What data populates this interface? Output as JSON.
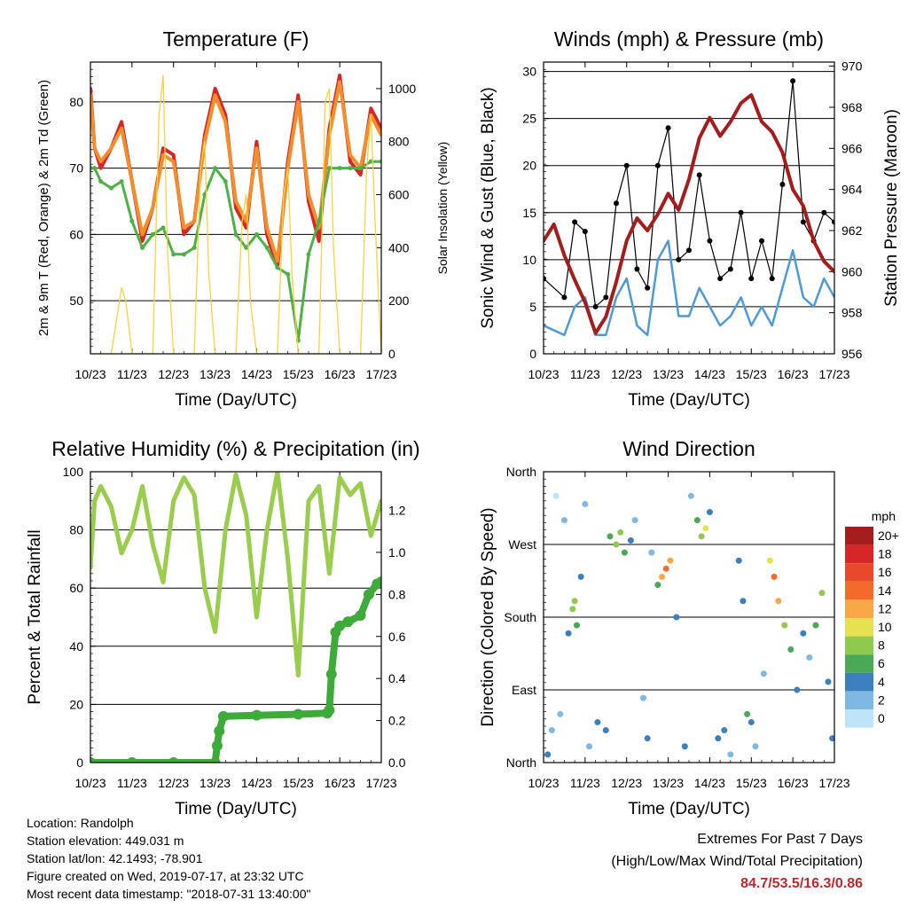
{
  "chart_data": [
    {
      "type": "line",
      "title": "Temperature (F)",
      "xlabel": "Time (Day/UTC)",
      "ylabel": "2m & 9m T (Red, Orange) & 2m Td (Green)",
      "ylabel_right": "Solar Insolation (Yellow)",
      "x_ticks": [
        "10/23",
        "11/23",
        "12/23",
        "13/23",
        "14/23",
        "15/23",
        "16/23",
        "17/23"
      ],
      "y_ticks": [
        "50",
        "60",
        "70",
        "80"
      ],
      "y_right_ticks": [
        "0",
        "200",
        "400",
        "600",
        "800",
        "1000"
      ],
      "ylim": [
        42,
        86
      ],
      "ylim_right": [
        0,
        1100
      ],
      "xlim": [
        0,
        7
      ],
      "grid": "horizontal",
      "series": [
        {
          "key": "t2m",
          "color": "#d62728",
          "x": [
            0,
            0.1,
            0.25,
            0.5,
            0.75,
            1.0,
            1.25,
            1.5,
            1.75,
            2.0,
            2.25,
            2.5,
            2.75,
            3.0,
            3.25,
            3.5,
            3.75,
            4.0,
            4.25,
            4.5,
            4.75,
            5.0,
            5.25,
            5.5,
            5.75,
            6.0,
            6.25,
            6.5,
            6.75,
            7.0
          ],
          "values": [
            82,
            73,
            70,
            73,
            77,
            68,
            59,
            64,
            73,
            72,
            60,
            62,
            75,
            82,
            78,
            64,
            61,
            74,
            60,
            55,
            71,
            81,
            65,
            59,
            76,
            84,
            71,
            69,
            79,
            76
          ]
        },
        {
          "key": "t9m",
          "color": "#f28e2b",
          "x": [
            0,
            0.1,
            0.25,
            0.5,
            0.75,
            1.0,
            1.25,
            1.5,
            1.75,
            2.0,
            2.25,
            2.5,
            2.75,
            3.0,
            3.25,
            3.5,
            3.75,
            4.0,
            4.25,
            4.5,
            4.75,
            5.0,
            5.25,
            5.5,
            5.75,
            6.0,
            6.25,
            6.5,
            6.75,
            7.0
          ],
          "values": [
            81,
            73,
            71,
            73,
            76,
            68,
            60,
            64,
            72,
            71,
            61,
            62,
            74,
            81,
            77,
            65,
            62,
            73,
            61,
            56,
            70,
            80,
            66,
            61,
            75,
            83,
            72,
            70,
            78,
            75
          ]
        },
        {
          "key": "td2m",
          "color": "#4db146",
          "x": [
            0,
            0.1,
            0.25,
            0.5,
            0.75,
            1.0,
            1.25,
            1.5,
            1.75,
            2.0,
            2.25,
            2.5,
            2.75,
            3.0,
            3.25,
            3.5,
            3.75,
            4.0,
            4.25,
            4.5,
            4.75,
            5.0,
            5.25,
            5.5,
            5.75,
            6.0,
            6.25,
            6.5,
            6.75,
            7.0
          ],
          "values": [
            70,
            70,
            68,
            67,
            68,
            62,
            58,
            60,
            61,
            57,
            57,
            58,
            66,
            70,
            68,
            60,
            58,
            60,
            58,
            55,
            54,
            44,
            57,
            62,
            70,
            70,
            70,
            70,
            71,
            71
          ]
        },
        {
          "key": "solar",
          "axis": "right",
          "color": "#f5d342",
          "x": [
            0,
            0.5,
            0.65,
            0.75,
            0.85,
            1.0,
            1.5,
            1.65,
            1.75,
            1.85,
            2.0,
            2.5,
            2.65,
            2.75,
            2.85,
            3.0,
            3.5,
            3.65,
            3.75,
            3.85,
            4.0,
            4.5,
            4.65,
            4.75,
            4.85,
            5.0,
            5.5,
            5.65,
            5.75,
            5.85,
            6.0,
            6.5,
            6.65,
            6.75,
            6.85,
            7.0
          ],
          "values": [
            0,
            0,
            150,
            250,
            200,
            0,
            0,
            900,
            1050,
            400,
            0,
            0,
            700,
            800,
            300,
            0,
            0,
            500,
            600,
            200,
            0,
            0,
            600,
            700,
            300,
            0,
            0,
            950,
            1000,
            400,
            0,
            0,
            700,
            900,
            500,
            0
          ]
        }
      ]
    },
    {
      "type": "line",
      "title": "Winds (mph) & Pressure (mb)",
      "xlabel": "Time (Day/UTC)",
      "ylabel": "Sonic Wind & Gust (Blue, Black)",
      "ylabel_right": "Station Pressure (Maroon)",
      "x_ticks": [
        "10/23",
        "11/23",
        "12/23",
        "13/23",
        "14/23",
        "15/23",
        "16/23",
        "17/23"
      ],
      "y_ticks": [
        "0",
        "5",
        "10",
        "15",
        "20",
        "25",
        "30"
      ],
      "y_right_ticks": [
        "956",
        "958",
        "960",
        "962",
        "964",
        "966",
        "968",
        "970"
      ],
      "ylim": [
        0,
        31
      ],
      "ylim_right": [
        956,
        970.2
      ],
      "xlim": [
        0,
        7
      ],
      "grid": "horizontal",
      "series": [
        {
          "key": "wind",
          "color": "#4f9ad5",
          "x": [
            0,
            0.5,
            0.75,
            1.0,
            1.25,
            1.5,
            1.75,
            2.0,
            2.25,
            2.5,
            2.75,
            3.0,
            3.25,
            3.5,
            3.75,
            4.0,
            4.25,
            4.5,
            4.75,
            5.0,
            5.25,
            5.5,
            5.75,
            6.0,
            6.25,
            6.5,
            6.75,
            7.0
          ],
          "values": [
            3,
            2,
            5,
            6,
            2,
            2,
            6,
            8,
            3,
            2,
            10,
            12,
            4,
            4,
            7,
            5,
            3,
            4,
            6,
            3,
            5,
            3,
            7,
            11,
            6,
            5,
            8,
            6
          ]
        },
        {
          "key": "gust",
          "color": "#000000",
          "x": [
            0,
            0.5,
            0.75,
            1.0,
            1.25,
            1.5,
            1.75,
            2.0,
            2.25,
            2.5,
            2.75,
            3.0,
            3.25,
            3.5,
            3.75,
            4.0,
            4.25,
            4.5,
            4.75,
            5.0,
            5.25,
            5.5,
            5.75,
            6.0,
            6.25,
            6.5,
            6.75,
            7.0
          ],
          "values": [
            8,
            6,
            14,
            13,
            5,
            6,
            16,
            20,
            9,
            7,
            20,
            24,
            10,
            11,
            19,
            12,
            8,
            9,
            15,
            8,
            12,
            8,
            18,
            29,
            14,
            12,
            15,
            14
          ]
        },
        {
          "key": "pressure",
          "axis": "right",
          "color": "#a51c1c",
          "x": [
            0,
            0.25,
            0.5,
            0.75,
            1.0,
            1.25,
            1.5,
            1.75,
            2.0,
            2.25,
            2.5,
            2.75,
            3.0,
            3.25,
            3.5,
            3.75,
            4.0,
            4.25,
            4.5,
            4.75,
            5.0,
            5.25,
            5.5,
            5.75,
            6.0,
            6.25,
            6.5,
            6.75,
            7.0
          ],
          "values": [
            961.5,
            962.3,
            960.8,
            959.6,
            958.5,
            957,
            957.8,
            959.5,
            961.5,
            962.6,
            962,
            962.8,
            963.8,
            963,
            964.5,
            966.5,
            967.5,
            966.6,
            967.3,
            968.2,
            968.6,
            967.3,
            966.8,
            965.8,
            964,
            963.2,
            961.5,
            960.5,
            960
          ]
        }
      ]
    },
    {
      "type": "line",
      "title": "Relative Humidity (%) & Precipitation (in)",
      "xlabel": "Time (Day/UTC)",
      "ylabel": "Percent & Total Rainfall",
      "x_ticks": [
        "10/23",
        "11/23",
        "12/23",
        "13/23",
        "14/23",
        "15/23",
        "16/23",
        "17/23"
      ],
      "y_ticks": [
        "0",
        "20",
        "40",
        "60",
        "80",
        "100"
      ],
      "y_right_ticks": [
        "0.0",
        "0.2",
        "0.4",
        "0.6",
        "0.8",
        "1.0",
        "1.2"
      ],
      "ylim": [
        0,
        100
      ],
      "ylim_right": [
        0,
        1.3836
      ],
      "xlim": [
        0,
        7
      ],
      "grid": "horizontal",
      "series": [
        {
          "key": "rh",
          "color": "#9acd4e",
          "x": [
            0,
            0.1,
            0.25,
            0.5,
            0.75,
            1.0,
            1.25,
            1.5,
            1.75,
            2.0,
            2.25,
            2.5,
            2.75,
            3.0,
            3.25,
            3.5,
            3.75,
            4.0,
            4.25,
            4.5,
            4.75,
            5.0,
            5.25,
            5.5,
            5.75,
            6.0,
            6.25,
            6.5,
            6.75,
            7.0
          ],
          "values": [
            67,
            90,
            95,
            88,
            72,
            80,
            95,
            75,
            62,
            90,
            98,
            92,
            60,
            45,
            80,
            99,
            85,
            50,
            80,
            100,
            70,
            30,
            90,
            95,
            65,
            98,
            92,
            96,
            78,
            90
          ]
        },
        {
          "key": "precip",
          "axis": "right",
          "color": "#3eaa3a",
          "x": [
            0,
            1,
            2,
            3.0,
            3.05,
            3.1,
            3.2,
            4,
            5,
            5.7,
            5.75,
            5.8,
            5.9,
            6.0,
            6.2,
            6.5,
            6.7,
            6.9,
            7.0
          ],
          "values": [
            0,
            0,
            0,
            0,
            0.08,
            0.15,
            0.22,
            0.225,
            0.23,
            0.235,
            0.25,
            0.42,
            0.62,
            0.65,
            0.67,
            0.7,
            0.8,
            0.85,
            0.86
          ]
        }
      ]
    },
    {
      "type": "scatter",
      "title": "Wind Direction",
      "xlabel": "Time (Day/UTC)",
      "ylabel": "Direction (Colored By Speed)",
      "x_ticks": [
        "10/23",
        "11/23",
        "12/23",
        "13/23",
        "14/23",
        "15/23",
        "16/23",
        "17/23"
      ],
      "y_ticks": [
        "North",
        "East",
        "South",
        "West",
        "North"
      ],
      "ylim": [
        0,
        360
      ],
      "xlim": [
        0,
        7
      ],
      "grid": "horizontal",
      "legend": {
        "title": "mph",
        "labels": [
          "20+",
          "18",
          "16",
          "14",
          "12",
          "10",
          "8",
          "6",
          "4",
          "2",
          "0"
        ],
        "colors": [
          "#a51c1c",
          "#d62728",
          "#e8492b",
          "#f26b2b",
          "#f9a747",
          "#e7e151",
          "#8fc94e",
          "#4aa957",
          "#3b7fbf",
          "#7eb8e3",
          "#bfe3f7"
        ]
      },
      "points": [
        [
          0.1,
          10,
          4
        ],
        [
          0.2,
          40,
          2
        ],
        [
          0.3,
          330,
          1
        ],
        [
          0.4,
          60,
          3
        ],
        [
          0.5,
          300,
          2
        ],
        [
          0.6,
          160,
          5
        ],
        [
          0.7,
          190,
          8
        ],
        [
          0.75,
          200,
          9
        ],
        [
          0.8,
          170,
          6
        ],
        [
          0.9,
          230,
          4
        ],
        [
          1.0,
          320,
          2
        ],
        [
          1.1,
          20,
          3
        ],
        [
          1.3,
          50,
          4
        ],
        [
          1.5,
          40,
          5
        ],
        [
          1.6,
          280,
          6
        ],
        [
          1.75,
          270,
          8
        ],
        [
          1.85,
          285,
          9
        ],
        [
          1.95,
          260,
          7
        ],
        [
          2.1,
          275,
          4
        ],
        [
          2.2,
          300,
          3
        ],
        [
          2.4,
          80,
          2
        ],
        [
          2.5,
          30,
          4
        ],
        [
          2.6,
          260,
          3
        ],
        [
          2.75,
          220,
          6
        ],
        [
          2.85,
          230,
          12
        ],
        [
          2.95,
          240,
          14
        ],
        [
          3.05,
          250,
          13
        ],
        [
          3.2,
          180,
          4
        ],
        [
          3.4,
          20,
          5
        ],
        [
          3.55,
          330,
          3
        ],
        [
          3.7,
          300,
          6
        ],
        [
          3.8,
          280,
          8
        ],
        [
          3.9,
          290,
          10
        ],
        [
          4.0,
          310,
          4
        ],
        [
          4.2,
          30,
          5
        ],
        [
          4.35,
          40,
          4
        ],
        [
          4.5,
          10,
          3
        ],
        [
          4.7,
          250,
          5
        ],
        [
          4.8,
          200,
          4
        ],
        [
          4.9,
          60,
          6
        ],
        [
          5.0,
          50,
          4
        ],
        [
          5.1,
          20,
          3
        ],
        [
          5.3,
          110,
          2
        ],
        [
          5.45,
          250,
          10
        ],
        [
          5.55,
          230,
          14
        ],
        [
          5.65,
          200,
          12
        ],
        [
          5.8,
          170,
          8
        ],
        [
          5.95,
          140,
          7
        ],
        [
          6.1,
          90,
          5
        ],
        [
          6.25,
          160,
          4
        ],
        [
          6.4,
          130,
          3
        ],
        [
          6.55,
          170,
          6
        ],
        [
          6.7,
          210,
          8
        ],
        [
          6.85,
          100,
          5
        ],
        [
          6.95,
          30,
          4
        ]
      ]
    }
  ],
  "info": {
    "location": "Location: Randolph",
    "elevation": "Station elevation: 449.031 m",
    "latlon": "Station lat/lon: 42.1493; -78.901",
    "created": "Figure created on Wed, 2019-07-17, at 23:32 UTC",
    "recent": "Most recent data timestamp: \"2018-07-31 13:40:00\""
  },
  "extremes": {
    "title": "Extremes For Past 7 Days",
    "subtitle": "(High/Low/Max Wind/Total Precipitation)",
    "values": "84.7/53.5/16.3/0.86"
  }
}
